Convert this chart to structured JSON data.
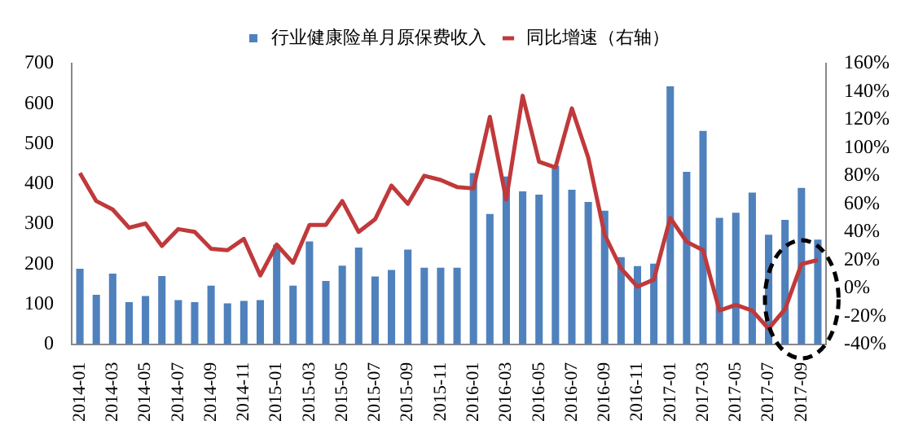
{
  "chart_data": {
    "type": "bar",
    "legend": "top",
    "grid": false,
    "marker": "none",
    "categories": [
      "2014-01",
      null,
      "2014-03",
      null,
      "2014-05",
      null,
      "2014-07",
      null,
      "2014-09",
      null,
      "2014-11",
      null,
      "2015-01",
      null,
      "2015-03",
      null,
      "2015-05",
      null,
      "2015-07",
      null,
      "2015-09",
      null,
      "2015-11",
      null,
      "2016-01",
      null,
      "2016-03",
      null,
      "2016-05",
      null,
      "2016-07",
      null,
      "2016-09",
      null,
      "2016-11",
      null,
      "2017-01",
      null,
      "2017-03",
      null,
      "2017-05",
      null,
      "2017-07",
      null,
      "2017-09",
      null
    ],
    "series": [
      {
        "name": "行业健康险单月原保费收入",
        "color": "#4f81bd",
        "values": [
          188,
          123,
          176,
          105,
          120,
          170,
          110,
          105,
          146,
          102,
          108,
          110,
          248,
          146,
          256,
          158,
          196,
          241,
          169,
          185,
          236,
          191,
          191,
          191,
          427,
          325,
          418,
          381,
          373,
          445,
          385,
          355,
          333,
          217,
          195,
          201,
          643,
          430,
          532,
          315,
          328,
          378,
          273,
          310,
          390,
          261
        ]
      },
      {
        "name": "同比增速（右轴）",
        "type": "line",
        "axis": "y2",
        "color": "#c0393b",
        "values": [
          82,
          62,
          56,
          43,
          46,
          30,
          42,
          40,
          28,
          27,
          35,
          9,
          31,
          18,
          45,
          45,
          62,
          40,
          49,
          73,
          60,
          80,
          77,
          72,
          71,
          122,
          63,
          137,
          90,
          86,
          128,
          93,
          38,
          14,
          1,
          6,
          50,
          33,
          27,
          -16,
          -12,
          -16,
          -29,
          -15,
          17,
          20
        ]
      }
    ],
    "ylim": [
      0,
      700
    ],
    "yticks": [
      0,
      100,
      200,
      300,
      400,
      500,
      600,
      700
    ],
    "y2lim": [
      -40,
      160
    ],
    "y2ticks": [
      {
        "value": -40,
        "label": "-40%"
      },
      {
        "value": -20,
        "label": "-20%"
      },
      {
        "value": 0,
        "label": "0%"
      },
      {
        "value": 20,
        "label": "20%"
      },
      {
        "value": 40,
        "label": "40%"
      },
      {
        "value": 60,
        "label": "60%"
      },
      {
        "value": 80,
        "label": "80%"
      },
      {
        "value": 100,
        "label": "100%"
      },
      {
        "value": 120,
        "label": "120%"
      },
      {
        "value": 140,
        "label": "140%"
      },
      {
        "value": 160,
        "label": "160%"
      }
    ]
  }
}
